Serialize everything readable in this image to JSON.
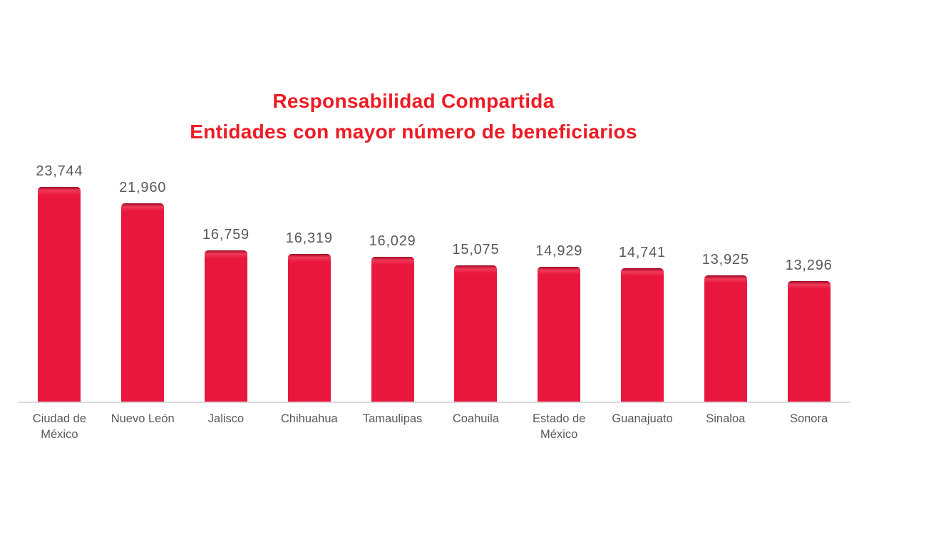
{
  "chart_data": {
    "type": "bar",
    "title": "Responsabilidad Compartida",
    "subtitle": "Entidades con mayor número de beneficiarios",
    "categories": [
      "Ciudad de México",
      "Nuevo León",
      "Jalisco",
      "Chihuahua",
      "Tamaulipas",
      "Coahuila",
      "Estado de México",
      "Guanajuato",
      "Sinaloa",
      "Sonora"
    ],
    "values": [
      23744,
      21960,
      16759,
      16319,
      16029,
      15075,
      14929,
      14741,
      13925,
      13296
    ],
    "value_labels": [
      "23,744",
      "21,960",
      "16,759",
      "16,319",
      "16,029",
      "15,075",
      "14,929",
      "14,741",
      "13,925",
      "13,296"
    ],
    "xlabel": "",
    "ylabel": "",
    "ylim": [
      0,
      23744
    ],
    "grid": false,
    "legend": "none",
    "data_labels": "above-bars",
    "colors": {
      "bar": "#e9173d",
      "bar_bevel_dark": "#6e0014",
      "title": "#ee1b24",
      "labels": "#595959",
      "axis_line": "#d9d9d9",
      "background": "#ffffff"
    }
  }
}
